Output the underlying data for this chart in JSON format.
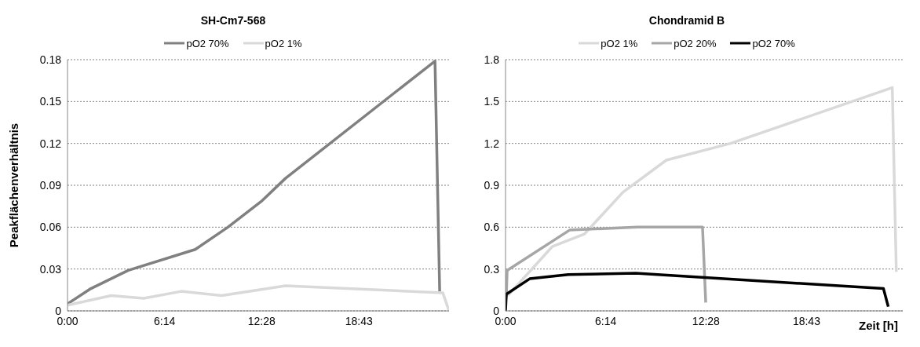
{
  "chart_data": [
    {
      "type": "line",
      "title": "SH-Cm7-568",
      "ylabel": "Peakflächenverhältnis",
      "xlim": [
        0,
        24.5
      ],
      "xticks": [
        {
          "value": 0,
          "label": "0:00"
        },
        {
          "value": 6.2333,
          "label": "6:14"
        },
        {
          "value": 12.4667,
          "label": "12:28"
        },
        {
          "value": 18.7167,
          "label": "18:43"
        }
      ],
      "ylim": [
        0,
        0.18
      ],
      "yticks": [
        0,
        0.03,
        0.06,
        0.09,
        0.12,
        0.15,
        0.18
      ],
      "grid": "y",
      "legend": "top",
      "marker": "none",
      "line_style": "solid",
      "series": [
        {
          "name": "pO2 70%",
          "color": "#808080",
          "x": [
            0,
            1.5,
            3.9,
            8.2,
            10.3,
            12.5,
            14.0,
            23.6,
            23.9
          ],
          "values": [
            0.005,
            0.016,
            0.029,
            0.044,
            0.06,
            0.079,
            0.095,
            0.179,
            0.014
          ]
        },
        {
          "name": "pO2 1%",
          "color": "#d9d9d9",
          "x": [
            0,
            2.8,
            4.9,
            7.3,
            9.9,
            14.0,
            24.1,
            24.5
          ],
          "values": [
            0.004,
            0.011,
            0.009,
            0.014,
            0.011,
            0.018,
            0.013,
            0
          ]
        }
      ]
    },
    {
      "type": "line",
      "title": "Chondramid B",
      "xlabel": "Zeit [h]",
      "xlim": [
        0,
        24.7
      ],
      "xticks": [
        {
          "value": 0,
          "label": "0:00"
        },
        {
          "value": 6.2333,
          "label": "6:14"
        },
        {
          "value": 12.4667,
          "label": "12:28"
        },
        {
          "value": 18.7167,
          "label": "18:43"
        }
      ],
      "ylim": [
        0,
        1.8
      ],
      "yticks": [
        0,
        0.3,
        0.6,
        0.9,
        1.2,
        1.5,
        1.8
      ],
      "grid": "y",
      "legend": "top",
      "marker": "none",
      "line_style": "solid",
      "series": [
        {
          "name": "pO2 1%",
          "color": "#d9d9d9",
          "x": [
            0.15,
            2.9,
            4.9,
            7.3,
            10.0,
            14.0,
            24.05,
            24.3
          ],
          "values": [
            0.11,
            0.46,
            0.55,
            0.85,
            1.08,
            1.2,
            1.6,
            0.28
          ]
        },
        {
          "name": "pO2 20%",
          "color": "#a6a6a6",
          "x": [
            0.05,
            0.1,
            4.0,
            8.2,
            12.25,
            12.45
          ],
          "values": [
            0.1,
            0.29,
            0.58,
            0.6,
            0.6,
            0.06
          ]
        },
        {
          "name": "pO2 70%",
          "color": "#000000",
          "x": [
            0,
            0.05,
            1.5,
            3.9,
            8.1,
            23.5,
            23.8
          ],
          "values": [
            0,
            0.12,
            0.23,
            0.26,
            0.27,
            0.16,
            0.03
          ]
        }
      ]
    }
  ]
}
